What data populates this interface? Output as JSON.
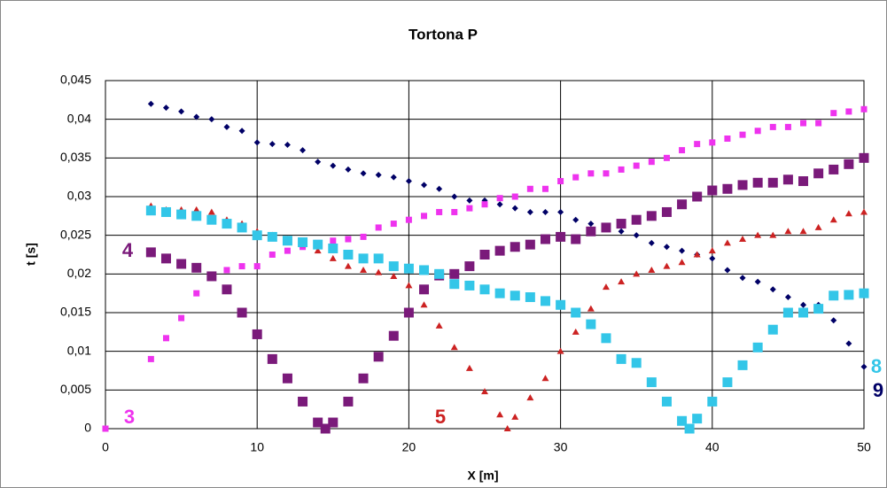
{
  "chart_data": {
    "type": "scatter",
    "title": "Tortona P",
    "x_label": "X [m]",
    "y_label": "t [s]",
    "xlim": [
      0,
      50
    ],
    "xticks": [
      0,
      10,
      20,
      30,
      40,
      50
    ],
    "ylim": [
      0,
      0.045
    ],
    "yticks": [
      0,
      {
        "value": 0.005,
        "label": "0,005"
      },
      {
        "value": 0.01,
        "label": "0,01"
      },
      {
        "value": 0.015,
        "label": "0,015"
      },
      {
        "value": 0.02,
        "label": "0,02"
      },
      {
        "value": 0.025,
        "label": "0,025"
      },
      {
        "value": 0.03,
        "label": "0,03"
      },
      {
        "value": 0.035,
        "label": "0,035"
      },
      {
        "value": 0.04,
        "label": "0,04"
      },
      {
        "value": 0.045,
        "label": "0,045"
      }
    ],
    "grid": true,
    "series": [
      {
        "name": "9",
        "color": "#000066",
        "marker": "diamond",
        "x": [
          3,
          4,
          5,
          6,
          7,
          8,
          9,
          10,
          11,
          12,
          13,
          14,
          15,
          16,
          17,
          18,
          19,
          20,
          21,
          22,
          23,
          24,
          25,
          26,
          27,
          28,
          29,
          30,
          31,
          32,
          33,
          34,
          35,
          36,
          37,
          38,
          39,
          40,
          41,
          42,
          43,
          44,
          45,
          46,
          47,
          48,
          49,
          50
        ],
        "values": [
          0.042,
          0.0415,
          0.041,
          0.0403,
          0.04,
          0.039,
          0.0385,
          0.037,
          0.0368,
          0.0367,
          0.036,
          0.0345,
          0.034,
          0.0335,
          0.033,
          0.0328,
          0.0325,
          0.032,
          0.0315,
          0.031,
          0.03,
          0.0295,
          0.0295,
          0.029,
          0.0285,
          0.028,
          0.028,
          0.028,
          0.027,
          0.0265,
          0.026,
          0.0255,
          0.025,
          0.024,
          0.0235,
          0.023,
          0.0225,
          0.022,
          0.0205,
          0.0195,
          0.019,
          0.018,
          0.017,
          0.016,
          0.016,
          0.014,
          0.011,
          0.008
        ]
      },
      {
        "name": "3",
        "color": "#ee33ee",
        "marker": "small-square",
        "x": [
          0,
          3,
          4,
          5,
          6,
          7,
          8,
          9,
          10,
          11,
          12,
          13,
          14,
          15,
          16,
          17,
          18,
          19,
          20,
          21,
          22,
          23,
          24,
          25,
          26,
          27,
          28,
          29,
          30,
          31,
          32,
          33,
          34,
          35,
          36,
          37,
          38,
          39,
          40,
          41,
          42,
          43,
          44,
          45,
          46,
          47,
          48,
          49,
          50
        ],
        "values": [
          0,
          0.009,
          0.0117,
          0.0143,
          0.0175,
          0.0195,
          0.0205,
          0.021,
          0.021,
          0.0225,
          0.023,
          0.0235,
          0.024,
          0.0243,
          0.0245,
          0.0248,
          0.026,
          0.0265,
          0.027,
          0.0275,
          0.028,
          0.028,
          0.0285,
          0.029,
          0.0298,
          0.03,
          0.031,
          0.031,
          0.032,
          0.0325,
          0.033,
          0.033,
          0.0335,
          0.034,
          0.0345,
          0.035,
          0.036,
          0.0368,
          0.037,
          0.0375,
          0.038,
          0.0385,
          0.039,
          0.039,
          0.0395,
          0.0395,
          0.0408,
          0.041,
          0.0413
        ]
      },
      {
        "name": "4",
        "color": "#7a1a7a",
        "marker": "square",
        "x": [
          3,
          4,
          5,
          6,
          7,
          8,
          9,
          10,
          11,
          12,
          13,
          14,
          14.5,
          15,
          16,
          17,
          18,
          19,
          20,
          21,
          22,
          23,
          24,
          25,
          26,
          27,
          28,
          29,
          30,
          31,
          32,
          33,
          34,
          35,
          36,
          37,
          38,
          39,
          40,
          41,
          42,
          43,
          44,
          45,
          46,
          47,
          48,
          49,
          50
        ],
        "values": [
          0.0228,
          0.022,
          0.0213,
          0.0208,
          0.0197,
          0.018,
          0.015,
          0.0122,
          0.009,
          0.0065,
          0.0035,
          0.0008,
          0,
          0.0008,
          0.0035,
          0.0065,
          0.0093,
          0.012,
          0.015,
          0.018,
          0.0198,
          0.02,
          0.021,
          0.0225,
          0.023,
          0.0235,
          0.0238,
          0.0245,
          0.0248,
          0.0245,
          0.0255,
          0.026,
          0.0265,
          0.027,
          0.0275,
          0.028,
          0.029,
          0.03,
          0.0308,
          0.031,
          0.0315,
          0.0318,
          0.0318,
          0.0322,
          0.032,
          0.033,
          0.0335,
          0.0342,
          0.035
        ]
      },
      {
        "name": "5",
        "color": "#cc2222",
        "marker": "triangle",
        "x": [
          3,
          4,
          5,
          6,
          7,
          8,
          9,
          10,
          11,
          12,
          13,
          14,
          15,
          16,
          17,
          18,
          19,
          20,
          21,
          22,
          23,
          24,
          25,
          26,
          26.5,
          27,
          28,
          29,
          30,
          31,
          32,
          33,
          34,
          35,
          36,
          37,
          38,
          39,
          40,
          41,
          42,
          43,
          44,
          45,
          46,
          47,
          48,
          49,
          50
        ],
        "values": [
          0.0288,
          0.0283,
          0.0283,
          0.0283,
          0.028,
          0.027,
          0.0265,
          0.0255,
          0.025,
          0.0245,
          0.0238,
          0.023,
          0.022,
          0.021,
          0.0205,
          0.0202,
          0.0197,
          0.0185,
          0.016,
          0.0133,
          0.0105,
          0.0078,
          0.0048,
          0.0018,
          0,
          0.0015,
          0.004,
          0.0065,
          0.01,
          0.0125,
          0.0155,
          0.0183,
          0.019,
          0.02,
          0.0205,
          0.021,
          0.0215,
          0.0225,
          0.023,
          0.024,
          0.0245,
          0.025,
          0.025,
          0.0255,
          0.0255,
          0.026,
          0.027,
          0.0278,
          0.028
        ]
      },
      {
        "name": "8",
        "color": "#33c6e8",
        "marker": "square",
        "x": [
          3,
          4,
          5,
          6,
          7,
          8,
          9,
          10,
          11,
          12,
          13,
          14,
          15,
          16,
          17,
          18,
          19,
          20,
          21,
          22,
          23,
          24,
          25,
          26,
          27,
          28,
          29,
          30,
          31,
          32,
          33,
          34,
          35,
          36,
          37,
          38,
          38.5,
          39,
          40,
          41,
          42,
          43,
          44,
          45,
          46,
          47,
          48,
          49,
          50
        ],
        "values": [
          0.0282,
          0.028,
          0.0277,
          0.0275,
          0.027,
          0.0265,
          0.026,
          0.025,
          0.0248,
          0.0243,
          0.0241,
          0.0238,
          0.0233,
          0.0225,
          0.022,
          0.022,
          0.021,
          0.0207,
          0.0205,
          0.02,
          0.0187,
          0.0185,
          0.018,
          0.0175,
          0.0172,
          0.017,
          0.0165,
          0.016,
          0.015,
          0.0135,
          0.0117,
          0.009,
          0.0085,
          0.006,
          0.0035,
          0.001,
          0,
          0.0013,
          0.0035,
          0.006,
          0.0082,
          0.0105,
          0.0128,
          0.015,
          0.015,
          0.0155,
          0.0172,
          0.0173,
          0.0175
        ]
      }
    ]
  }
}
